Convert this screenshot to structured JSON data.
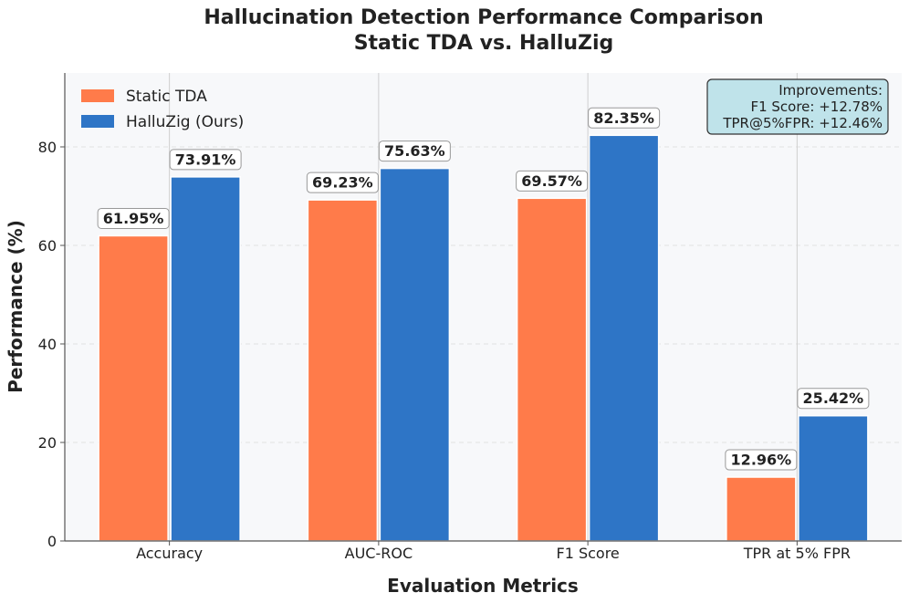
{
  "chart_data": {
    "type": "bar",
    "title": [
      "Hallucination Detection Performance Comparison",
      "Static TDA vs. HalluZig"
    ],
    "xlabel": "Evaluation Metrics",
    "ylabel": "Performance (%)",
    "categories": [
      "Accuracy",
      "AUC-ROC",
      "F1 Score",
      "TPR at 5% FPR"
    ],
    "series": [
      {
        "name": "Static TDA",
        "color": "#ff7b4a",
        "values": [
          61.95,
          69.23,
          69.57,
          12.96
        ],
        "labels": [
          "61.95%",
          "69.23%",
          "69.57%",
          "12.96%"
        ]
      },
      {
        "name": "HalluZig (Ours)",
        "color": "#2e75c6",
        "values": [
          73.91,
          75.63,
          82.35,
          25.42
        ],
        "labels": [
          "73.91%",
          "75.63%",
          "82.35%",
          "25.42%"
        ]
      }
    ],
    "ylim": [
      0,
      95
    ],
    "yticks": [
      0,
      20,
      40,
      60,
      80
    ],
    "grid": true,
    "legend_position": "top-left",
    "annotation": {
      "position": "top-right",
      "lines": [
        "Improvements:",
        "F1 Score: +12.78%",
        "TPR@5%FPR: +12.46%"
      ],
      "background": "#bfe3ea"
    },
    "background": "#f7f8fa"
  }
}
